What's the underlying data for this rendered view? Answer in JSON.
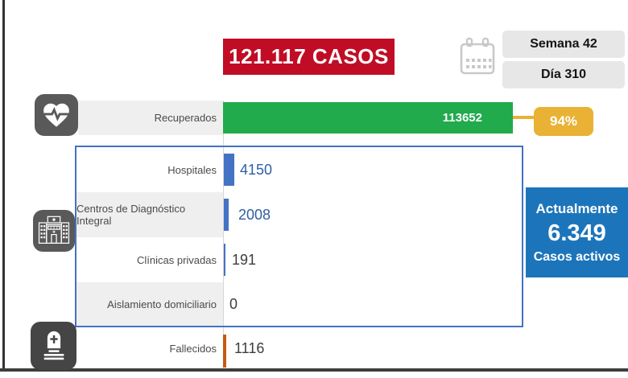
{
  "summary": {
    "cases_banner": "121.117 CASOS",
    "week_badge": "Semana 42",
    "day_badge": "Día 310",
    "recovered_percent": "94%",
    "active": {
      "line1": "Actualmente",
      "value": "6.349",
      "line2": "Casos activos"
    }
  },
  "icons": {
    "calendar": "calendar-icon",
    "recovered": "heart-pulse-icon",
    "hospitalization": "hospital-icon",
    "deaths": "tombstone-icon"
  },
  "colors": {
    "banner_red": "#c00d25",
    "recovered_green": "#21ab4d",
    "percent_gold": "#e9b234",
    "bar_blue": "#4472c4",
    "active_box_blue": "#1c75bb",
    "deaths_orange": "#c55a11",
    "tile_gray": "#595959",
    "tile_dark": "#454545",
    "strip_gray": "#efefef"
  },
  "chart_data": {
    "type": "bar",
    "orientation": "horizontal",
    "title": "121.117 CASOS",
    "categories": [
      "Recuperados",
      "Hospitales",
      "Centros de Diagnóstico Integral",
      "Clínicas privadas",
      "Aislamiento domiciliario",
      "Fallecidos"
    ],
    "values": [
      113652,
      4150,
      2008,
      191,
      0,
      1116
    ],
    "bar_colors": [
      "#21ab4d",
      "#4472c4",
      "#4472c4",
      "#4472c4",
      "#4472c4",
      "#c55a11"
    ],
    "value_labels_shown": true,
    "annotations": [
      "94%",
      "Semana 42",
      "Día 310",
      "Actualmente 6.349 Casos activos"
    ],
    "legend": false,
    "axes_visible": false,
    "xlim": [
      0,
      113652
    ]
  }
}
